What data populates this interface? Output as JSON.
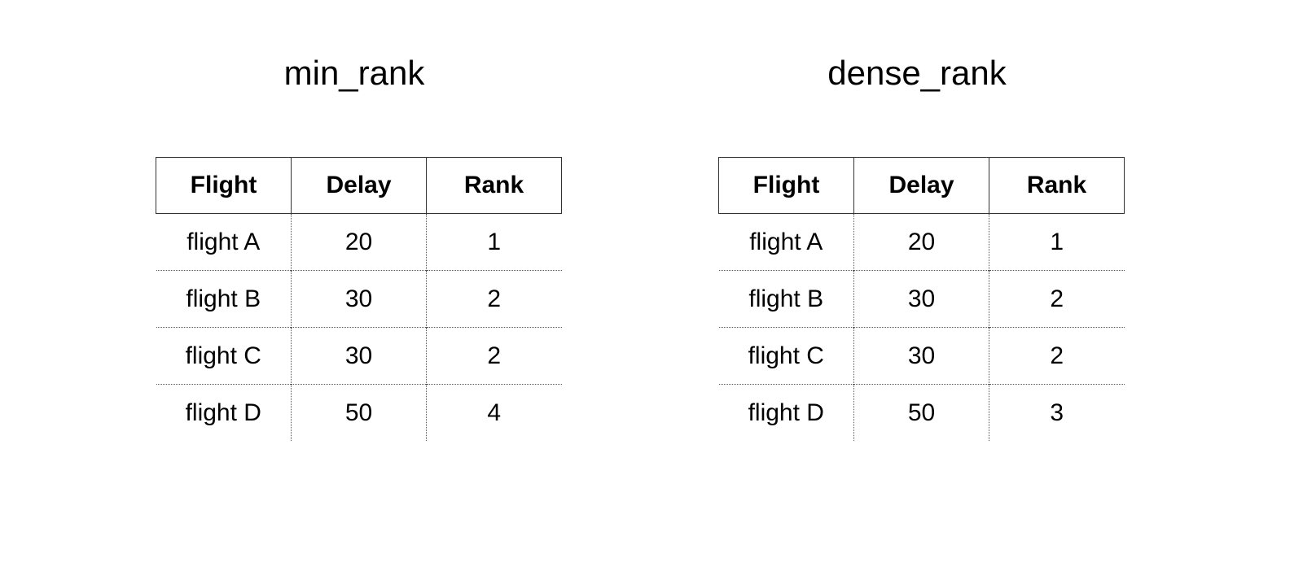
{
  "tables": [
    {
      "title": "min_rank",
      "headers": [
        "Flight",
        "Delay",
        "Rank"
      ],
      "rows": [
        [
          "flight A",
          "20",
          "1"
        ],
        [
          "flight B",
          "30",
          "2"
        ],
        [
          "flight C",
          "30",
          "2"
        ],
        [
          "flight D",
          "50",
          "4"
        ]
      ]
    },
    {
      "title": "dense_rank",
      "headers": [
        "Flight",
        "Delay",
        "Rank"
      ],
      "rows": [
        [
          "flight A",
          "20",
          "1"
        ],
        [
          "flight B",
          "30",
          "2"
        ],
        [
          "flight C",
          "30",
          "2"
        ],
        [
          "flight D",
          "50",
          "3"
        ]
      ]
    }
  ]
}
